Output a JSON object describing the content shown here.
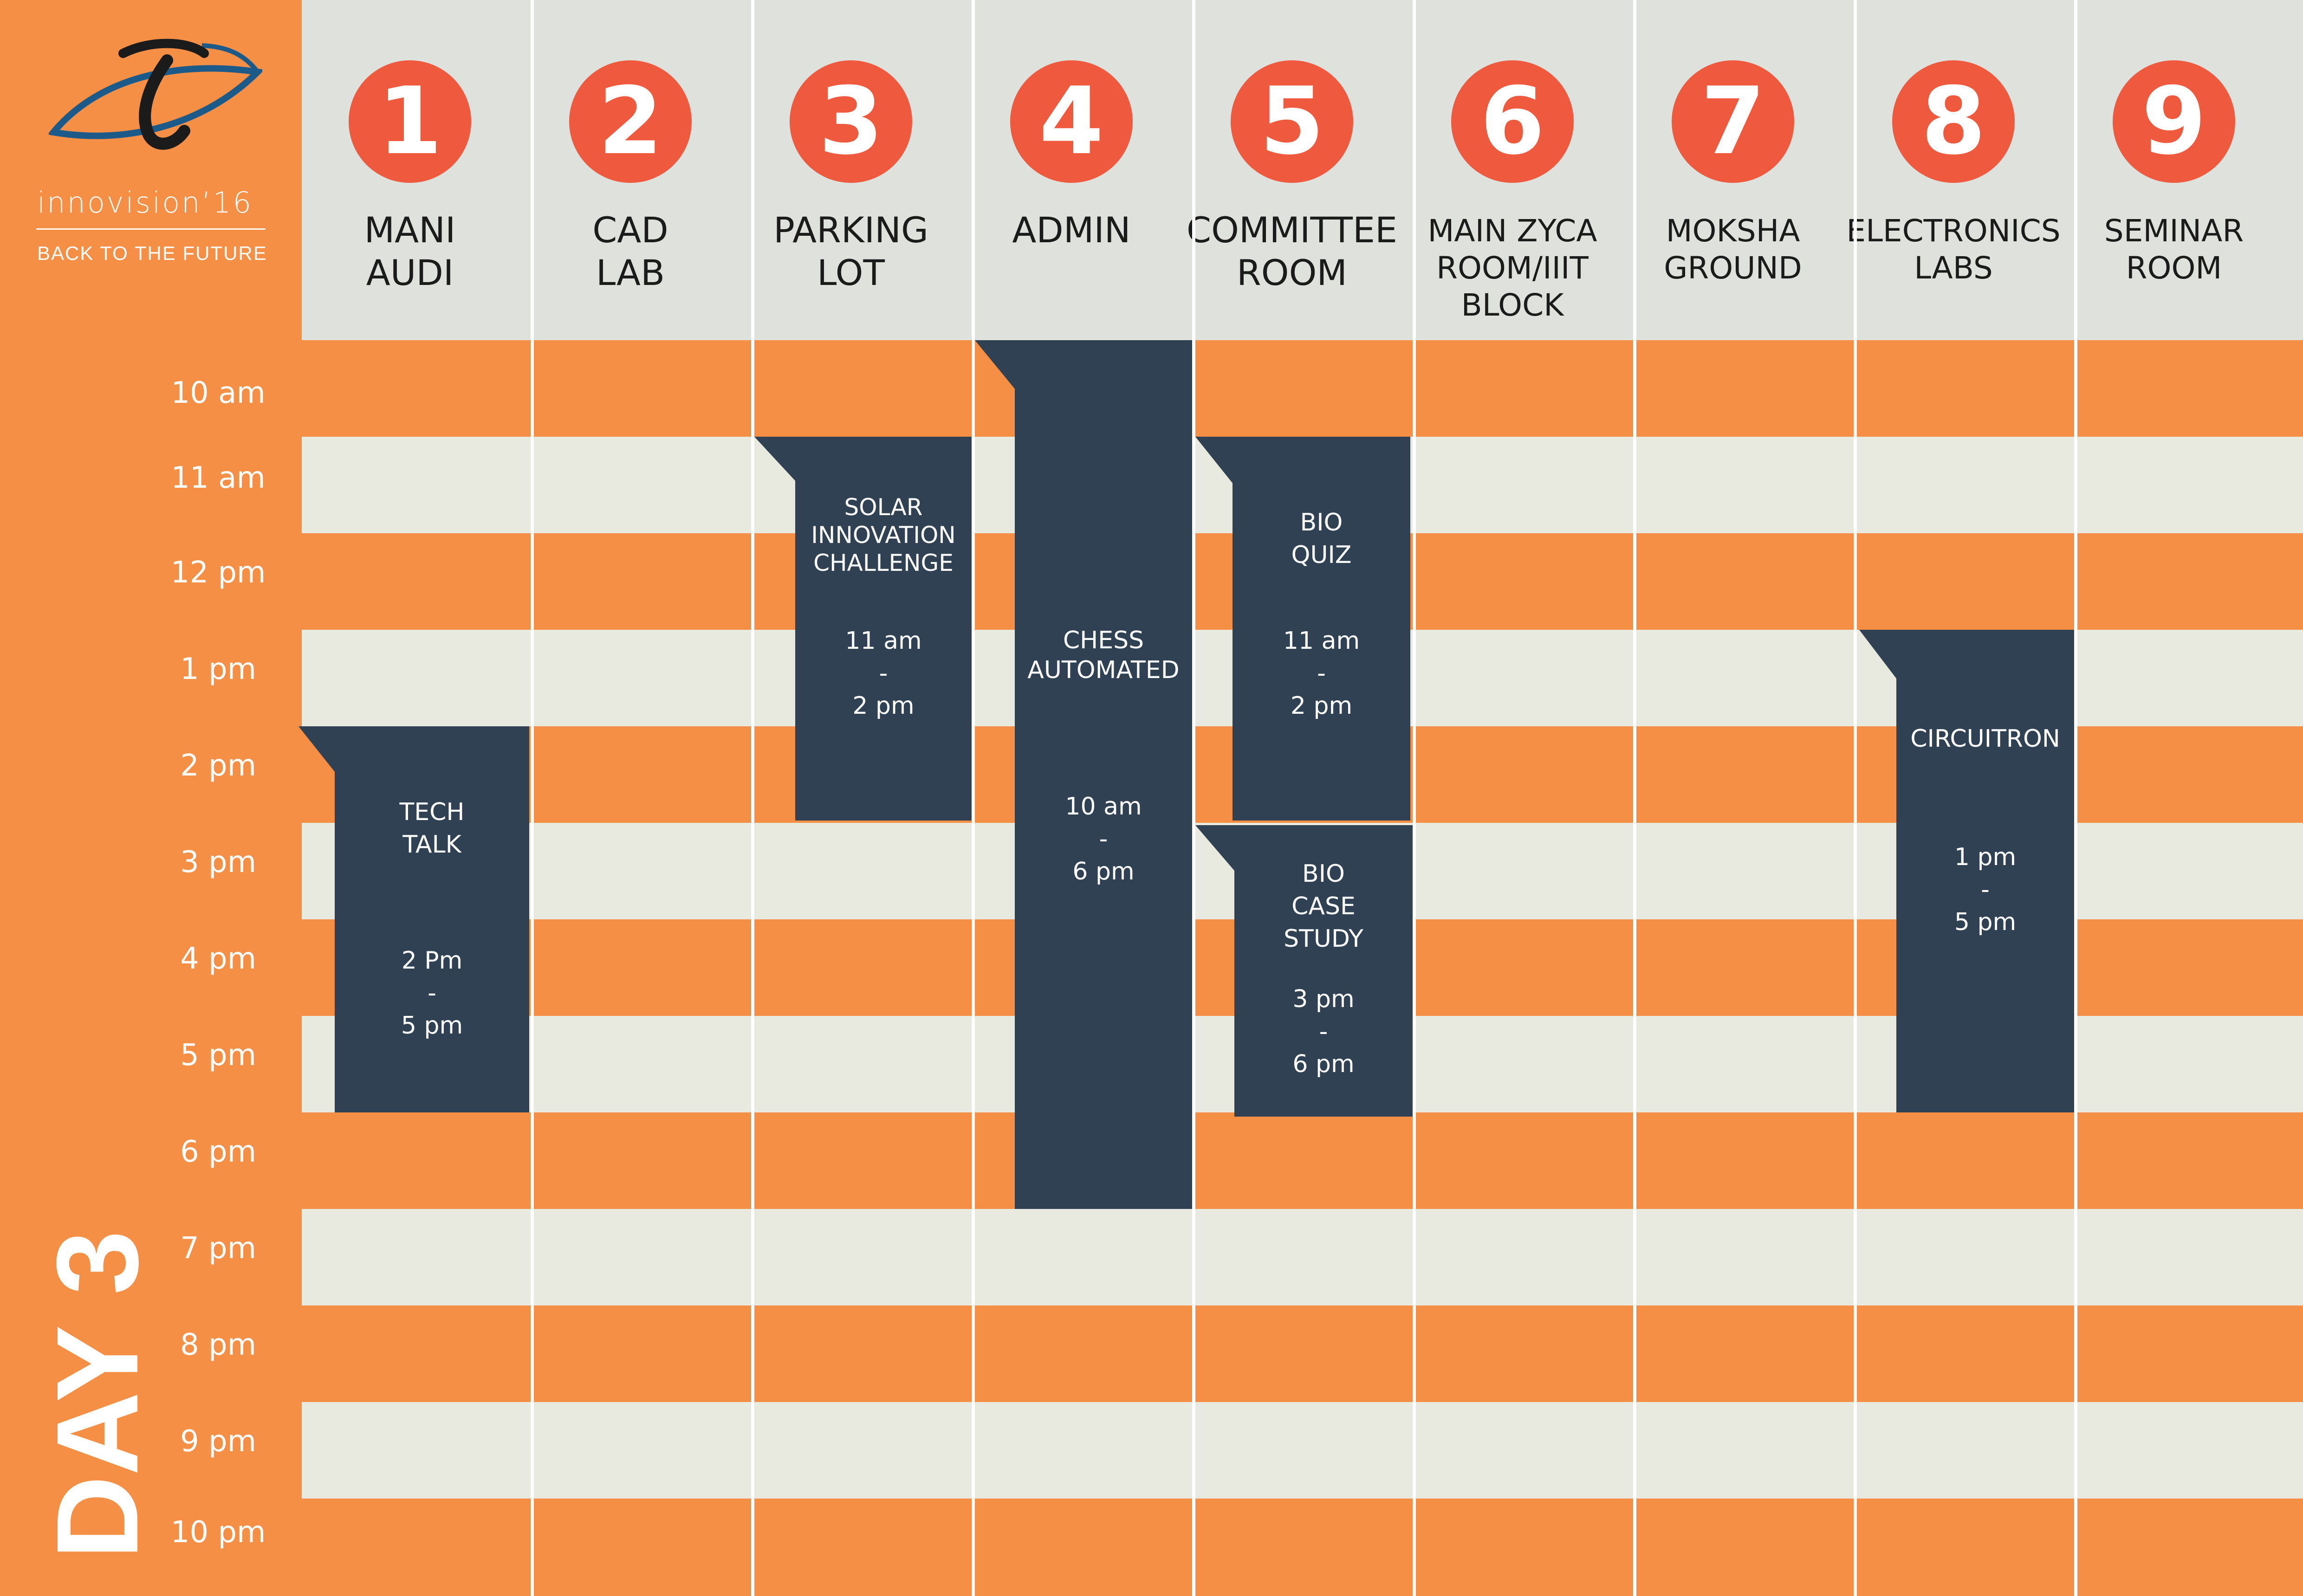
{
  "brand": {
    "name": "innovision’16",
    "tagline": "BACK TO THE FUTURE"
  },
  "day": "DAY 3",
  "colors": {
    "orange": "#f48f45",
    "light_row": "#e8eadf",
    "header_bg": "#dfe1dd",
    "circle": "#ef5a3e",
    "event": "#2f4153"
  },
  "times": [
    "10 am",
    "11 am",
    "12 pm",
    "1 pm",
    "2 pm",
    "3 pm",
    "4 pm",
    "5 pm",
    "6 pm",
    "7 pm",
    "8 pm",
    "9 pm",
    "10 pm"
  ],
  "venues": [
    {
      "num": "1",
      "name": "MANI\nAUDI"
    },
    {
      "num": "2",
      "name": "CAD\nLAB"
    },
    {
      "num": "3",
      "name": "PARKING\nLOT"
    },
    {
      "num": "4",
      "name": "ADMIN"
    },
    {
      "num": "5",
      "name": "COMMITTEE\nROOM"
    },
    {
      "num": "6",
      "name": "MAIN ZYCA\nROOM/IIIT\nBLOCK"
    },
    {
      "num": "7",
      "name": "MOKSHA\nGROUND"
    },
    {
      "num": "8",
      "name": "ELECTRONICS\nLABS"
    },
    {
      "num": "9",
      "name": "SEMINAR\nROOM"
    }
  ],
  "events": [
    {
      "title": "TECH\nTALK",
      "time": "2 Pm\n-\n5 pm"
    },
    {
      "title": "SOLAR\nINNOVATION\nCHALLENGE",
      "time": "11 am\n-\n2 pm"
    },
    {
      "title": "CHESS\nAUTOMATED",
      "time": "10 am\n-\n6 pm"
    },
    {
      "title": "BIO\nQUIZ",
      "time": "11 am\n-\n2 pm"
    },
    {
      "title": "BIO\nCASE\nSTUDY",
      "time": "3 pm\n-\n6 pm"
    },
    {
      "title": "CIRCUITRON",
      "time": "1 pm\n-\n5 pm"
    }
  ]
}
